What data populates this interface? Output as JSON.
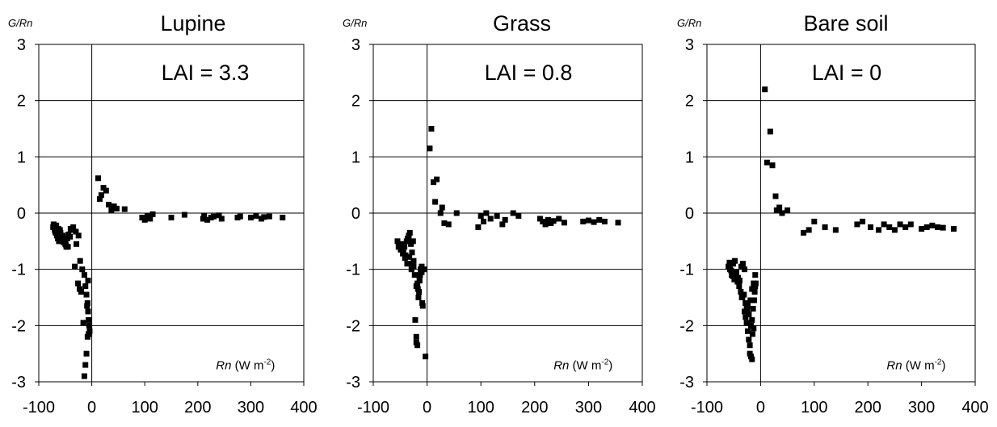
{
  "chart_data": [
    {
      "type": "scatter",
      "title": "Lupine",
      "annotation": "LAI = 3.3",
      "ylabel": "G/Rn",
      "xlabel": {
        "symbol": "Rn",
        "unit": "(W m",
        "exponent": "-2",
        "close": ")"
      },
      "xlim": [
        -100,
        400
      ],
      "ylim": [
        -3,
        3
      ],
      "xticks": [
        "-100",
        "0",
        "100",
        "200",
        "300",
        "400"
      ],
      "yticks": [
        "-3",
        "-2",
        "-1",
        "0",
        "1",
        "2",
        "3"
      ],
      "grid": "horizontal",
      "marker": "filled square",
      "marker_color": "#000000",
      "x": [
        -73,
        -70,
        -68,
        -66,
        -64,
        -62,
        -60,
        -58,
        -56,
        -72,
        -67,
        -63,
        -59,
        -55,
        -52,
        -50,
        -48,
        -46,
        -44,
        -41,
        -38,
        -35,
        -32,
        -29,
        -26,
        -23,
        -20,
        -69,
        -65,
        -61,
        -57,
        -53,
        -49,
        -45,
        -40,
        -30,
        -25,
        -22,
        -18,
        -14,
        -12,
        -10,
        -8,
        -7,
        -6,
        -5,
        -4,
        -6,
        -8,
        -10,
        -12,
        -14,
        -16,
        -9,
        -7,
        12,
        15,
        18,
        22,
        27,
        32,
        37,
        42,
        47,
        62,
        95,
        100,
        105,
        110,
        115,
        150,
        175,
        210,
        212,
        218,
        225,
        230,
        240,
        245,
        275,
        280,
        300,
        310,
        320,
        325,
        335,
        360
      ],
      "y": [
        -0.25,
        -0.3,
        -0.35,
        -0.4,
        -0.45,
        -0.5,
        -0.3,
        -0.45,
        -0.5,
        -0.2,
        -0.22,
        -0.28,
        -0.35,
        -0.4,
        -0.5,
        -0.55,
        -0.6,
        -0.45,
        -0.38,
        -0.42,
        -0.3,
        -0.25,
        -0.95,
        -0.55,
        -1.25,
        -1.35,
        -1.4,
        -0.33,
        -0.38,
        -0.42,
        -0.48,
        -0.52,
        -0.56,
        -0.6,
        -0.28,
        -0.33,
        -0.4,
        -0.85,
        -1.0,
        -1.1,
        -1.3,
        -1.45,
        -1.6,
        -1.75,
        -1.9,
        -2.0,
        -2.1,
        -2.15,
        -2.2,
        -2.5,
        -2.7,
        -2.9,
        -1.95,
        -1.65,
        -1.2,
        0.62,
        0.25,
        0.32,
        0.45,
        0.4,
        0.15,
        0.05,
        0.12,
        0.08,
        0.07,
        -0.08,
        -0.12,
        -0.05,
        -0.1,
        -0.02,
        -0.08,
        -0.03,
        -0.1,
        -0.05,
        -0.12,
        -0.08,
        -0.06,
        -0.04,
        -0.1,
        -0.08,
        -0.06,
        -0.08,
        -0.05,
        -0.1,
        -0.07,
        -0.06,
        -0.08
      ]
    },
    {
      "type": "scatter",
      "title": "Grass",
      "annotation": "LAI = 0.8",
      "ylabel": "G/Rn",
      "xlabel": {
        "symbol": "Rn",
        "unit": "(W m",
        "exponent": "-2",
        "close": ")"
      },
      "xlim": [
        -100,
        400
      ],
      "ylim": [
        -3,
        3
      ],
      "xticks": [
        "-100",
        "0",
        "100",
        "200",
        "300",
        "400"
      ],
      "yticks": [
        "-3",
        "-2",
        "-1",
        "0",
        "1",
        "2",
        "3"
      ],
      "grid": "horizontal",
      "marker": "filled square",
      "marker_color": "#000000",
      "x": [
        -55,
        -52,
        -50,
        -48,
        -46,
        -44,
        -42,
        -40,
        -38,
        -36,
        -34,
        -32,
        -30,
        -28,
        -26,
        -53,
        -49,
        -45,
        -41,
        -37,
        -33,
        -29,
        -25,
        -23,
        -20,
        -18,
        -16,
        -14,
        -12,
        -10,
        -22,
        -20,
        -18,
        -15,
        -13,
        -11,
        -9,
        -8,
        -20,
        -17,
        -14,
        -10,
        -5,
        -3,
        -25,
        -28,
        5,
        8,
        12,
        15,
        18,
        25,
        28,
        32,
        40,
        55,
        95,
        100,
        105,
        110,
        118,
        130,
        140,
        145,
        160,
        170,
        210,
        215,
        220,
        225,
        230,
        235,
        245,
        255,
        290,
        300,
        310,
        320,
        330,
        355
      ],
      "y": [
        -0.5,
        -0.55,
        -0.6,
        -0.55,
        -0.65,
        -0.7,
        -0.6,
        -0.75,
        -0.5,
        -0.45,
        -0.4,
        -0.35,
        -0.55,
        -0.7,
        -0.5,
        -0.6,
        -0.65,
        -0.72,
        -0.8,
        -0.9,
        -0.78,
        -1.0,
        -0.85,
        -1.1,
        -1.3,
        -1.25,
        -1.5,
        -1.2,
        -1.0,
        -0.95,
        -1.9,
        -2.2,
        -2.35,
        -1.4,
        -1.1,
        -1.0,
        -1.6,
        -1.65,
        -2.3,
        -1.35,
        -1.2,
        -1.05,
        -1.0,
        -2.55,
        -0.95,
        -0.9,
        1.15,
        1.5,
        0.55,
        0.2,
        0.6,
        0.0,
        0.1,
        -0.18,
        -0.2,
        0.0,
        -0.25,
        -0.05,
        -0.15,
        0.0,
        -0.1,
        -0.05,
        -0.2,
        -0.12,
        0.0,
        -0.05,
        -0.1,
        -0.15,
        -0.2,
        -0.12,
        -0.18,
        -0.14,
        -0.1,
        -0.17,
        -0.15,
        -0.13,
        -0.16,
        -0.12,
        -0.15,
        -0.17
      ]
    },
    {
      "type": "scatter",
      "title": "Bare soil",
      "annotation": "LAI = 0",
      "ylabel": "G/Rn",
      "xlabel": {
        "symbol": "Rn",
        "unit": "(W m",
        "exponent": "-2",
        "close": ")"
      },
      "xlim": [
        -100,
        400
      ],
      "ylim": [
        -3,
        3
      ],
      "xticks": [
        "-100",
        "0",
        "100",
        "200",
        "300",
        "400"
      ],
      "yticks": [
        "-3",
        "-2",
        "-1",
        "0",
        "1",
        "2",
        "3"
      ],
      "grid": "horizontal",
      "marker": "filled square",
      "marker_color": "#000000",
      "x": [
        -60,
        -57,
        -54,
        -51,
        -48,
        -45,
        -42,
        -39,
        -36,
        -33,
        -30,
        -58,
        -55,
        -52,
        -49,
        -46,
        -43,
        -40,
        -37,
        -34,
        -31,
        -28,
        -25,
        -22,
        -19,
        -16,
        -13,
        -10,
        -30,
        -28,
        -26,
        -24,
        -22,
        -20,
        -18,
        -16,
        -14,
        -12,
        -11,
        -10,
        -9,
        -20,
        -18,
        -16,
        -28,
        -26,
        -24,
        -22,
        -35,
        -32,
        -15,
        -13,
        8,
        12,
        18,
        22,
        28,
        30,
        35,
        40,
        50,
        80,
        90,
        100,
        120,
        140,
        180,
        190,
        205,
        220,
        230,
        240,
        250,
        260,
        270,
        280,
        300,
        310,
        320,
        330,
        340,
        360
      ],
      "y": [
        -0.95,
        -1.0,
        -1.1,
        -0.9,
        -0.85,
        -1.05,
        -1.15,
        -1.2,
        -0.95,
        -0.9,
        -1.0,
        -0.88,
        -1.02,
        -1.12,
        -1.18,
        -1.08,
        -1.22,
        -1.3,
        -1.4,
        -1.5,
        -1.45,
        -1.6,
        -1.7,
        -1.8,
        -1.55,
        -1.35,
        -1.25,
        -1.1,
        -1.75,
        -1.85,
        -1.95,
        -2.1,
        -2.25,
        -2.35,
        -2.0,
        -1.9,
        -1.7,
        -1.55,
        -1.4,
        -1.3,
        -1.25,
        -2.5,
        -2.55,
        -2.6,
        -1.6,
        -1.7,
        -1.65,
        -1.8,
        -1.5,
        -1.45,
        -2.15,
        -2.05,
        2.2,
        0.9,
        1.45,
        0.85,
        0.3,
        0.05,
        0.1,
        0.0,
        0.05,
        -0.35,
        -0.3,
        -0.15,
        -0.25,
        -0.3,
        -0.2,
        -0.15,
        -0.25,
        -0.3,
        -0.2,
        -0.25,
        -0.3,
        -0.2,
        -0.25,
        -0.2,
        -0.28,
        -0.25,
        -0.22,
        -0.25,
        -0.26,
        -0.28
      ]
    }
  ]
}
